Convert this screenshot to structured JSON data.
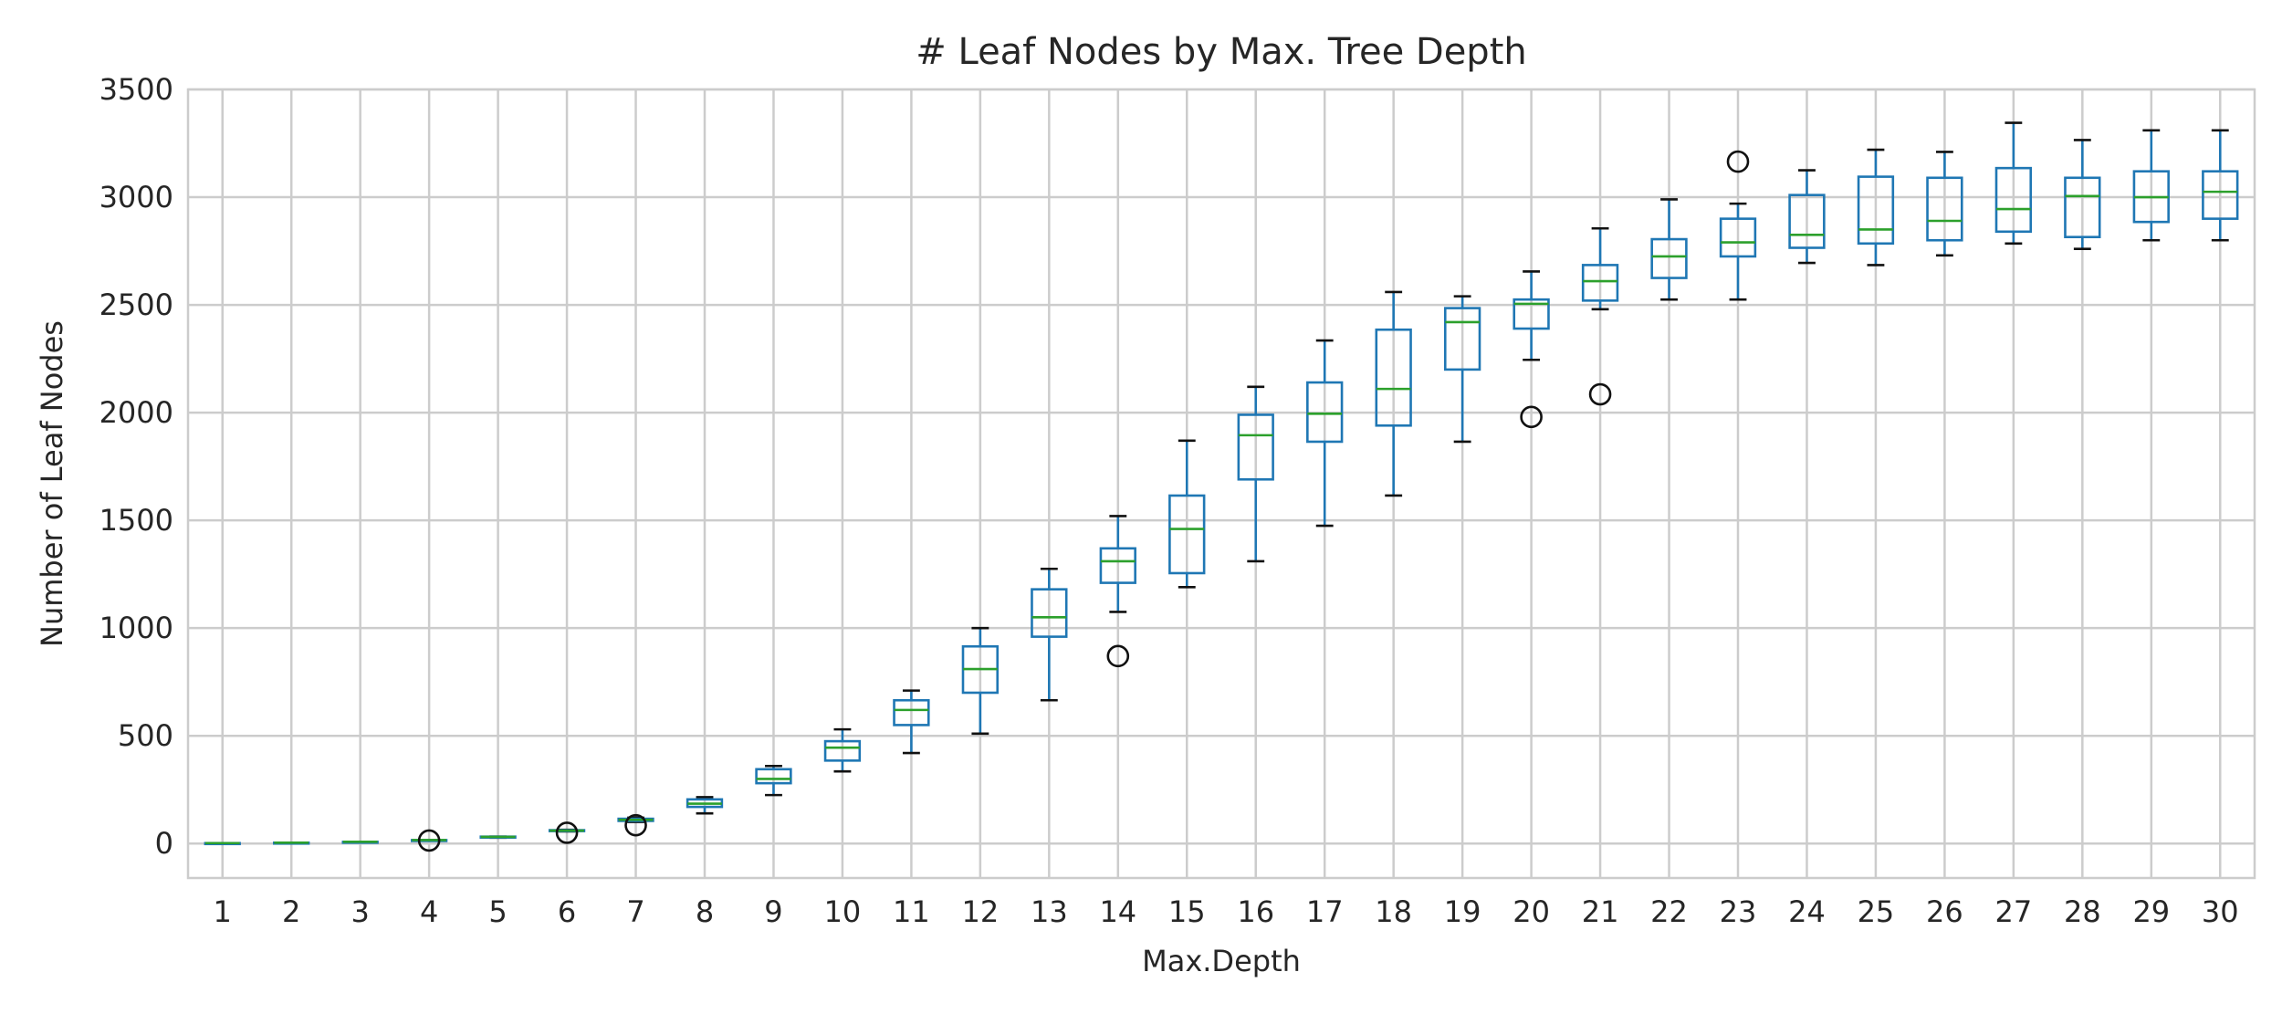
{
  "chart_data": {
    "type": "box",
    "title": "# Leaf Nodes by Max. Tree Depth",
    "xlabel": "Max.Depth",
    "ylabel": "Number of Leaf Nodes",
    "ylim": [
      -160,
      3500
    ],
    "yticks": [
      0,
      500,
      1000,
      1500,
      2000,
      2500,
      3000,
      3500
    ],
    "grid": true,
    "categories": [
      "1",
      "2",
      "3",
      "4",
      "5",
      "6",
      "7",
      "8",
      "9",
      "10",
      "11",
      "12",
      "13",
      "14",
      "15",
      "16",
      "17",
      "18",
      "19",
      "20",
      "21",
      "22",
      "23",
      "24",
      "25",
      "26",
      "27",
      "28",
      "29",
      "30"
    ],
    "boxes": [
      {
        "min": 2,
        "q1": 2,
        "median": 2,
        "q3": 2,
        "max": 2,
        "outliers": []
      },
      {
        "min": 4,
        "q1": 4,
        "median": 4,
        "q3": 4,
        "max": 4,
        "outliers": []
      },
      {
        "min": 7,
        "q1": 8,
        "median": 8,
        "q3": 8,
        "max": 8,
        "outliers": []
      },
      {
        "min": 14,
        "q1": 16,
        "median": 16,
        "q3": 16,
        "max": 16,
        "outliers": [
          14
        ]
      },
      {
        "min": 27,
        "q1": 29,
        "median": 31,
        "q3": 32,
        "max": 32,
        "outliers": []
      },
      {
        "min": 56,
        "q1": 58,
        "median": 60,
        "q3": 62,
        "max": 64,
        "outliers": [
          50
        ]
      },
      {
        "min": 100,
        "q1": 105,
        "median": 110,
        "q3": 115,
        "max": 120,
        "outliers": [
          85
        ]
      },
      {
        "min": 140,
        "q1": 170,
        "median": 185,
        "q3": 205,
        "max": 215,
        "outliers": []
      },
      {
        "min": 225,
        "q1": 280,
        "median": 300,
        "q3": 345,
        "max": 360,
        "outliers": []
      },
      {
        "min": 335,
        "q1": 385,
        "median": 445,
        "q3": 475,
        "max": 530,
        "outliers": []
      },
      {
        "min": 420,
        "q1": 550,
        "median": 620,
        "q3": 665,
        "max": 710,
        "outliers": []
      },
      {
        "min": 510,
        "q1": 700,
        "median": 810,
        "q3": 915,
        "max": 1000,
        "outliers": []
      },
      {
        "min": 665,
        "q1": 960,
        "median": 1050,
        "q3": 1180,
        "max": 1275,
        "outliers": []
      },
      {
        "min": 1075,
        "q1": 1210,
        "median": 1310,
        "q3": 1370,
        "max": 1520,
        "outliers": [
          870
        ]
      },
      {
        "min": 1190,
        "q1": 1255,
        "median": 1460,
        "q3": 1615,
        "max": 1870,
        "outliers": []
      },
      {
        "min": 1310,
        "q1": 1690,
        "median": 1895,
        "q3": 1990,
        "max": 2120,
        "outliers": []
      },
      {
        "min": 1475,
        "q1": 1865,
        "median": 1995,
        "q3": 2140,
        "max": 2335,
        "outliers": []
      },
      {
        "min": 1615,
        "q1": 1940,
        "median": 2110,
        "q3": 2385,
        "max": 2560,
        "outliers": []
      },
      {
        "min": 1865,
        "q1": 2200,
        "median": 2420,
        "q3": 2485,
        "max": 2540,
        "outliers": []
      },
      {
        "min": 2245,
        "q1": 2390,
        "median": 2505,
        "q3": 2525,
        "max": 2655,
        "outliers": [
          1980
        ]
      },
      {
        "min": 2480,
        "q1": 2520,
        "median": 2610,
        "q3": 2685,
        "max": 2855,
        "outliers": [
          2085
        ]
      },
      {
        "min": 2525,
        "q1": 2625,
        "median": 2725,
        "q3": 2805,
        "max": 2990,
        "outliers": []
      },
      {
        "min": 2525,
        "q1": 2725,
        "median": 2790,
        "q3": 2900,
        "max": 2970,
        "outliers": [
          3165
        ]
      },
      {
        "min": 2695,
        "q1": 2765,
        "median": 2825,
        "q3": 3010,
        "max": 3125,
        "outliers": []
      },
      {
        "min": 2685,
        "q1": 2785,
        "median": 2850,
        "q3": 3095,
        "max": 3220,
        "outliers": []
      },
      {
        "min": 2730,
        "q1": 2800,
        "median": 2890,
        "q3": 3090,
        "max": 3210,
        "outliers": []
      },
      {
        "min": 2785,
        "q1": 2840,
        "median": 2945,
        "q3": 3135,
        "max": 3345,
        "outliers": []
      },
      {
        "min": 2760,
        "q1": 2815,
        "median": 3005,
        "q3": 3090,
        "max": 3265,
        "outliers": []
      },
      {
        "min": 2800,
        "q1": 2885,
        "median": 3000,
        "q3": 3120,
        "max": 3310,
        "outliers": []
      },
      {
        "min": 2800,
        "q1": 2900,
        "median": 3025,
        "q3": 3120,
        "max": 3310,
        "outliers": []
      }
    ]
  }
}
